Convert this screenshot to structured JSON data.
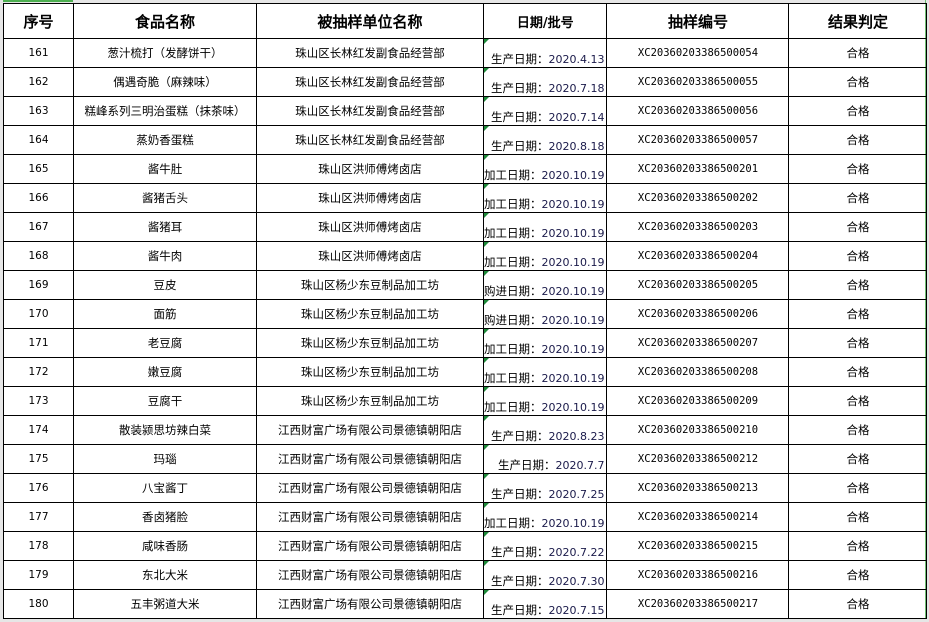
{
  "headers": [
    "序号",
    "食品名称",
    "被抽样单位名称",
    "日期/批号",
    "抽样编号",
    "结果判定"
  ],
  "rows": [
    {
      "no": "161",
      "food": "葱汁梳打（发酵饼干）",
      "unit": "珠山区长林红发副食品经营部",
      "date_label": "生产日期：",
      "date": "2020.4.13",
      "code": "XC20360203386500054",
      "result": "合格"
    },
    {
      "no": "162",
      "food": "偶遇奇脆（麻辣味）",
      "unit": "珠山区长林红发副食品经营部",
      "date_label": "生产日期：",
      "date": "2020.7.18",
      "code": "XC20360203386500055",
      "result": "合格"
    },
    {
      "no": "163",
      "food": "糕峰系列三明治蛋糕（抹茶味）",
      "unit": "珠山区长林红发副食品经营部",
      "date_label": "生产日期：",
      "date": "2020.7.14",
      "code": "XC20360203386500056",
      "result": "合格"
    },
    {
      "no": "164",
      "food": "蒸奶香蛋糕",
      "unit": "珠山区长林红发副食品经营部",
      "date_label": "生产日期：",
      "date": "2020.8.18",
      "code": "XC20360203386500057",
      "result": "合格"
    },
    {
      "no": "165",
      "food": "酱牛肚",
      "unit": "珠山区洪师傅烤卤店",
      "date_label": "加工日期：",
      "date": "2020.10.19",
      "code": "XC20360203386500201",
      "result": "合格"
    },
    {
      "no": "166",
      "food": "酱猪舌头",
      "unit": "珠山区洪师傅烤卤店",
      "date_label": "加工日期：",
      "date": "2020.10.19",
      "code": "XC20360203386500202",
      "result": "合格"
    },
    {
      "no": "167",
      "food": "酱猪耳",
      "unit": "珠山区洪师傅烤卤店",
      "date_label": "加工日期：",
      "date": "2020.10.19",
      "code": "XC20360203386500203",
      "result": "合格"
    },
    {
      "no": "168",
      "food": "酱牛肉",
      "unit": "珠山区洪师傅烤卤店",
      "date_label": "加工日期：",
      "date": "2020.10.19",
      "code": "XC20360203386500204",
      "result": "合格"
    },
    {
      "no": "169",
      "food": "豆皮",
      "unit": "珠山区杨少东豆制品加工坊",
      "date_label": "购进日期：",
      "date": "2020.10.19",
      "code": "XC20360203386500205",
      "result": "合格"
    },
    {
      "no": "170",
      "food": "面筋",
      "unit": "珠山区杨少东豆制品加工坊",
      "date_label": "购进日期：",
      "date": "2020.10.19",
      "code": "XC20360203386500206",
      "result": "合格"
    },
    {
      "no": "171",
      "food": "老豆腐",
      "unit": "珠山区杨少东豆制品加工坊",
      "date_label": "加工日期：",
      "date": "2020.10.19",
      "code": "XC20360203386500207",
      "result": "合格"
    },
    {
      "no": "172",
      "food": "嫩豆腐",
      "unit": "珠山区杨少东豆制品加工坊",
      "date_label": "加工日期：",
      "date": "2020.10.19",
      "code": "XC20360203386500208",
      "result": "合格"
    },
    {
      "no": "173",
      "food": "豆腐干",
      "unit": "珠山区杨少东豆制品加工坊",
      "date_label": "加工日期：",
      "date": "2020.10.19",
      "code": "XC20360203386500209",
      "result": "合格"
    },
    {
      "no": "174",
      "food": "散装颍思坊辣白菜",
      "unit": "江西财富广场有限公司景德镇朝阳店",
      "date_label": "生产日期：",
      "date": "2020.8.23",
      "code": "XC20360203386500210",
      "result": "合格"
    },
    {
      "no": "175",
      "food": "玛瑙",
      "unit": "江西财富广场有限公司景德镇朝阳店",
      "date_label": "生产日期：",
      "date": "2020.7.7",
      "code": "XC20360203386500212",
      "result": "合格"
    },
    {
      "no": "176",
      "food": "八宝酱丁",
      "unit": "江西财富广场有限公司景德镇朝阳店",
      "date_label": "生产日期：",
      "date": "2020.7.25",
      "code": "XC20360203386500213",
      "result": "合格"
    },
    {
      "no": "177",
      "food": "香卤猪脸",
      "unit": "江西财富广场有限公司景德镇朝阳店",
      "date_label": "加工日期：",
      "date": "2020.10.19",
      "code": "XC20360203386500214",
      "result": "合格"
    },
    {
      "no": "178",
      "food": "咸味香肠",
      "unit": "江西财富广场有限公司景德镇朝阳店",
      "date_label": "生产日期：",
      "date": "2020.7.22",
      "code": "XC20360203386500215",
      "result": "合格"
    },
    {
      "no": "179",
      "food": "东北大米",
      "unit": "江西财富广场有限公司景德镇朝阳店",
      "date_label": "生产日期：",
      "date": "2020.7.30",
      "code": "XC20360203386500216",
      "result": "合格"
    },
    {
      "no": "180",
      "food": "五丰粥道大米",
      "unit": "江西财富广场有限公司景德镇朝阳店",
      "date_label": "生产日期：",
      "date": "2020.7.15",
      "code": "XC20360203386500217",
      "result": "合格"
    }
  ],
  "colors": {
    "grid": "#000000",
    "selection": "#4caf50",
    "comment_marker": "#1e8a3a",
    "frame": "#e6e6e6"
  }
}
